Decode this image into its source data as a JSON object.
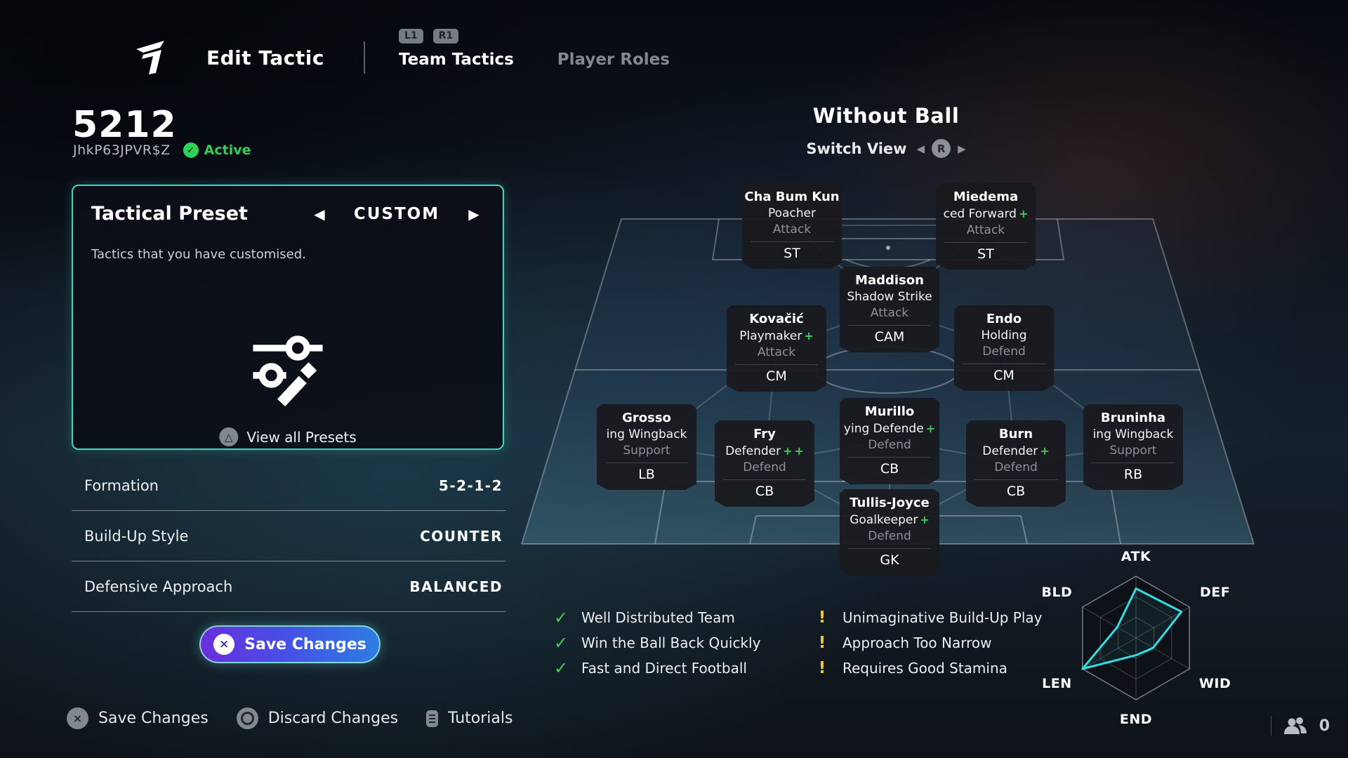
{
  "header": {
    "title": "Edit Tactic",
    "shoulder_left": "L1",
    "shoulder_right": "R1",
    "tabs": [
      {
        "label": "Team Tactics",
        "active": true
      },
      {
        "label": "Player Roles",
        "active": false
      }
    ]
  },
  "tactic": {
    "name": "5212",
    "code": "JhkP63JPVR$Z",
    "status": "Active"
  },
  "preset": {
    "title": "Tactical Preset",
    "value": "CUSTOM",
    "description": "Tactics that you have customised.",
    "view_all": "View all Presets"
  },
  "settings": [
    {
      "label": "Formation",
      "value": "5-2-1-2"
    },
    {
      "label": "Build-Up Style",
      "value": "COUNTER"
    },
    {
      "label": "Defensive Approach",
      "value": "BALANCED"
    }
  ],
  "save_button": "Save Changes",
  "footer": [
    {
      "button": "cross",
      "label": "Save Changes"
    },
    {
      "button": "circle",
      "label": "Discard Changes"
    },
    {
      "button": "touchpad",
      "label": "Tutorials"
    }
  ],
  "footer_right": {
    "count": "0"
  },
  "pitch": {
    "title": "Without Ball",
    "switch_label": "Switch View",
    "switch_button": "R",
    "players": [
      {
        "name": "Cha Bum Kun",
        "role": "Poacher",
        "pluses": 0,
        "focus": "Attack",
        "pos": "ST"
      },
      {
        "name": "Miedema",
        "role": "ced Forward",
        "pluses": 1,
        "focus": "Attack",
        "pos": "ST"
      },
      {
        "name": "Maddison",
        "role": "Shadow Strike",
        "pluses": 0,
        "focus": "Attack",
        "pos": "CAM"
      },
      {
        "name": "Kovačić",
        "role": "Playmaker",
        "pluses": 1,
        "focus": "Attack",
        "pos": "CM"
      },
      {
        "name": "Endo",
        "role": "Holding",
        "pluses": 0,
        "focus": "Defend",
        "pos": "CM"
      },
      {
        "name": "Grosso",
        "role": "ing Wingback",
        "pluses": 0,
        "focus": "Support",
        "pos": "LB"
      },
      {
        "name": "Fry",
        "role": "Defender",
        "pluses": 2,
        "focus": "Defend",
        "pos": "CB"
      },
      {
        "name": "Murillo",
        "role": "ying Defende",
        "pluses": 1,
        "focus": "Defend",
        "pos": "CB"
      },
      {
        "name": "Burn",
        "role": "Defender",
        "pluses": 1,
        "focus": "Defend",
        "pos": "CB"
      },
      {
        "name": "Bruninha",
        "role": "ing Wingback",
        "pluses": 0,
        "focus": "Support",
        "pos": "RB"
      },
      {
        "name": "Tullis-Joyce",
        "role": "Goalkeeper",
        "pluses": 1,
        "focus": "Defend",
        "pos": "GK"
      }
    ]
  },
  "feedback": {
    "positives": [
      "Well Distributed Team",
      "Win the Ball Back Quickly",
      "Fast and Direct Football"
    ],
    "warnings": [
      "Unimaginative Build-Up Play",
      "Approach Too Narrow",
      "Requires Good Stamina"
    ]
  },
  "chart_data": {
    "type": "radar",
    "title": "Tactic attribute radar",
    "categories": [
      "ATK",
      "DEF",
      "WID",
      "END",
      "LEN",
      "BLD"
    ],
    "values": [
      0.8,
      0.85,
      0.32,
      0.28,
      1.0,
      0.35
    ],
    "max": 1,
    "grid_levels": 3,
    "line_color": "#35dde0"
  },
  "colors": {
    "accent_teal": "#43d6c0",
    "active_green": "#2fd157",
    "plus_green": "#35d156",
    "warning_yellow": "#e9c63d",
    "radar_cyan": "#35dde0",
    "save_gradient_start": "#6b2edc",
    "save_gradient_end": "#2e7ce2"
  }
}
